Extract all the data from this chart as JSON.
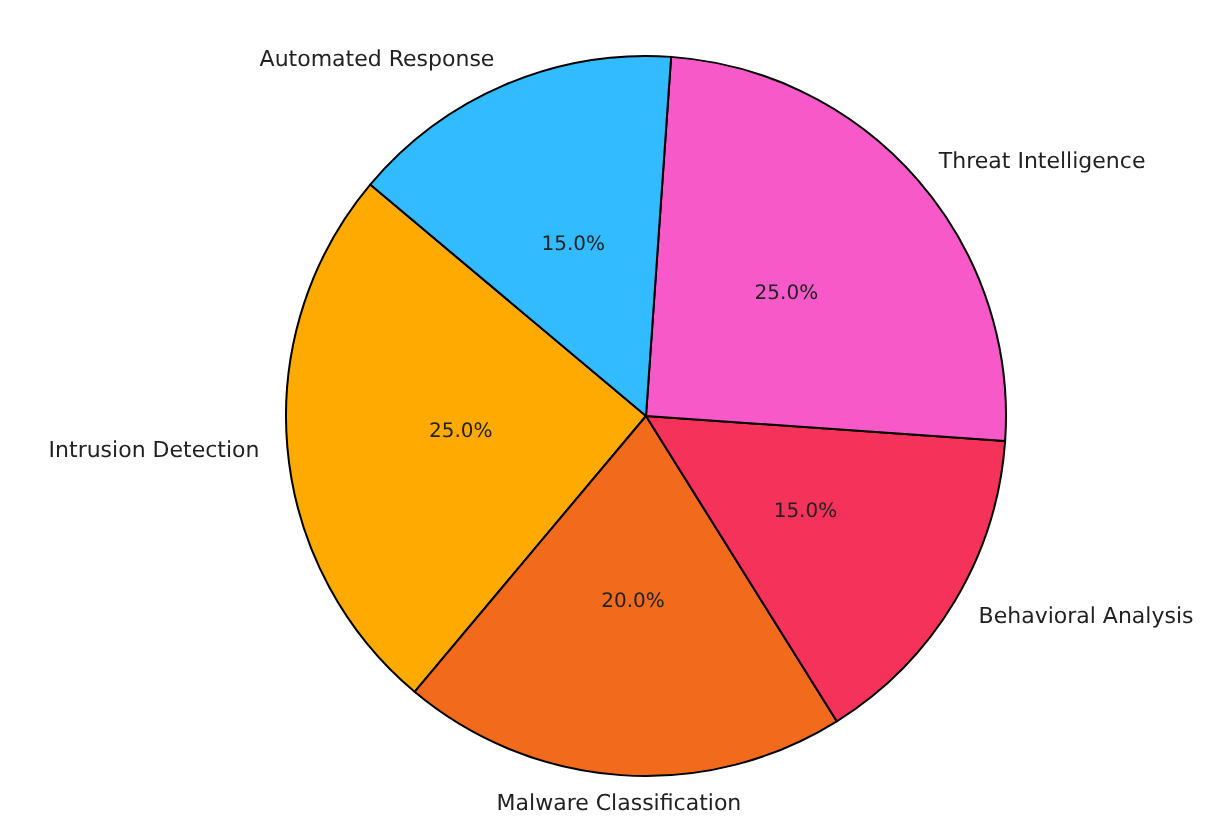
{
  "chart_data": {
    "type": "pie",
    "categories": [
      "Intrusion Detection",
      "Malware Classification",
      "Behavioral Analysis",
      "Threat Intelligence",
      "Automated Response"
    ],
    "values": [
      25,
      20,
      15,
      25,
      15
    ],
    "value_labels": [
      "25.0%",
      "20.0%",
      "15.0%",
      "25.0%",
      "15.0%"
    ],
    "colors": [
      "#ffaa00",
      "#f26b1d",
      "#f5325a",
      "#f75ac8",
      "#33bbff"
    ]
  }
}
